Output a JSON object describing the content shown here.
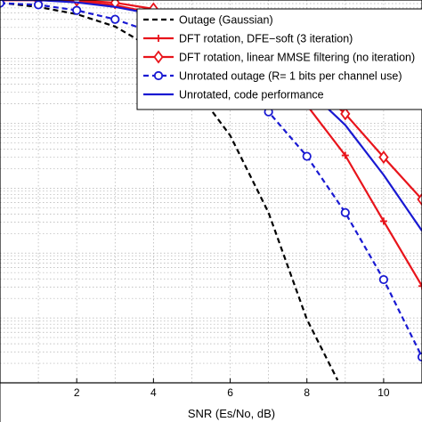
{
  "chart_data": {
    "type": "line",
    "title": "",
    "xlabel": "SNR (Es/No, dB)",
    "ylabel": "",
    "xlim": [
      0,
      11
    ],
    "ylim_log10": [
      -6.0,
      -0.1
    ],
    "y_scale": "log",
    "grid": true,
    "legend_position": "top-right",
    "x_ticks": [
      2,
      4,
      6,
      8,
      10
    ],
    "x_tick_labels": [
      "2",
      "4",
      "6",
      "8",
      "10"
    ],
    "series": [
      {
        "name": "Outage (Gaussian)",
        "color": "#000000",
        "line_style": "dashed",
        "marker": "none",
        "x": [
          0,
          1,
          2,
          3,
          4,
          5,
          6,
          7,
          8,
          8.8
        ],
        "y": [
          0.72,
          0.62,
          0.48,
          0.31,
          0.14,
          0.04,
          0.0065,
          0.00042,
          9.5e-06,
          1.1e-06
        ]
      },
      {
        "name": "DFT rotation, DFE−soft (3 iteration)",
        "color": "#e8141b",
        "line_style": "solid",
        "marker": "plus",
        "x": [
          0,
          1,
          2,
          3,
          4,
          5,
          6,
          7,
          8,
          9,
          10,
          11
        ],
        "y": [
          0.79,
          0.79,
          0.76,
          0.66,
          0.5,
          0.33,
          0.17,
          0.072,
          0.019,
          0.0032,
          0.00031,
          3.1e-05
        ]
      },
      {
        "name": "DFT rotation, linear MMSE filtering (no iteration)",
        "color": "#e8141b",
        "line_style": "solid",
        "marker": "diamond",
        "x": [
          0,
          1,
          2,
          3,
          4,
          5,
          6,
          7,
          8,
          9,
          10,
          11
        ],
        "y": [
          0.79,
          0.79,
          0.79,
          0.72,
          0.58,
          0.39,
          0.24,
          0.12,
          0.046,
          0.014,
          0.003,
          0.00067
        ]
      },
      {
        "name": "Unrotated outage (R= 1 bits per channel use)",
        "color": "#1919d2",
        "line_style": "dashed",
        "marker": "circle",
        "x": [
          0,
          1,
          2,
          3,
          4,
          5,
          6,
          7,
          8,
          9,
          10,
          11
        ],
        "y": [
          0.71,
          0.67,
          0.55,
          0.4,
          0.25,
          0.13,
          0.05,
          0.015,
          0.0031,
          0.00042,
          3.9e-05,
          2.5e-06
        ]
      },
      {
        "name": "Unrotated, code performance",
        "color": "#1919d2",
        "line_style": "solid",
        "marker": "none",
        "x": [
          0,
          1,
          2,
          3,
          4,
          5,
          6,
          7,
          8,
          9,
          10,
          11
        ],
        "y": [
          0.8,
          0.79,
          0.73,
          0.62,
          0.48,
          0.33,
          0.19,
          0.096,
          0.034,
          0.0094,
          0.0016,
          0.00022
        ]
      }
    ]
  }
}
